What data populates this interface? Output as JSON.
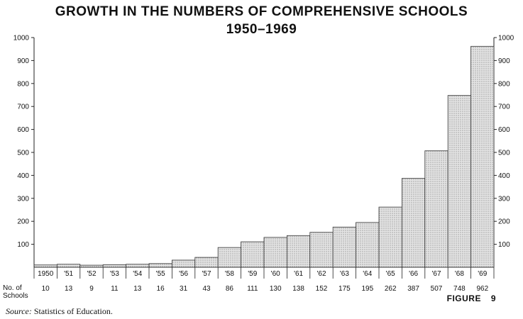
{
  "chart_data": {
    "type": "bar",
    "title": "GROWTH IN THE NUMBERS OF COMPREHENSIVE SCHOOLS",
    "subtitle": "1950–1969",
    "categories": [
      "1950",
      "'51",
      "'52",
      "'53",
      "'54",
      "'55",
      "'56",
      "'57",
      "'58",
      "'59",
      "'60",
      "'61",
      "'62",
      "'63",
      "'64",
      "'65",
      "'66",
      "'67",
      "'68",
      "'69"
    ],
    "values": [
      10,
      13,
      9,
      11,
      13,
      16,
      31,
      43,
      86,
      111,
      130,
      138,
      152,
      175,
      195,
      262,
      387,
      507,
      748,
      962
    ],
    "value_labels": [
      "10",
      "13",
      "9",
      "11",
      "13",
      "16",
      "31",
      "43",
      "86",
      "111",
      "130",
      "138",
      "152",
      "175",
      "195",
      "262",
      "387",
      "507",
      "748",
      "962"
    ],
    "row_label_line1": "No. of",
    "row_label_line2": "Schools",
    "ylim": [
      0,
      1000
    ],
    "yticks": [
      100,
      200,
      300,
      400,
      500,
      600,
      700,
      800,
      900,
      1000
    ],
    "ytick_labels": [
      "100",
      "200",
      "300",
      "400",
      "500",
      "600",
      "700",
      "800",
      "900",
      "1000"
    ],
    "left_ytick_labels": [
      "100",
      "200",
      "300",
      "400",
      "500",
      "600",
      "700",
      "800",
      "900",
      "1000"
    ],
    "grid": false,
    "bar_fill": "#d8d8d8"
  },
  "figure_label": "FIGURE",
  "figure_number": "9",
  "source_prefix": "Source:",
  "source_text": "Statistics of Education."
}
